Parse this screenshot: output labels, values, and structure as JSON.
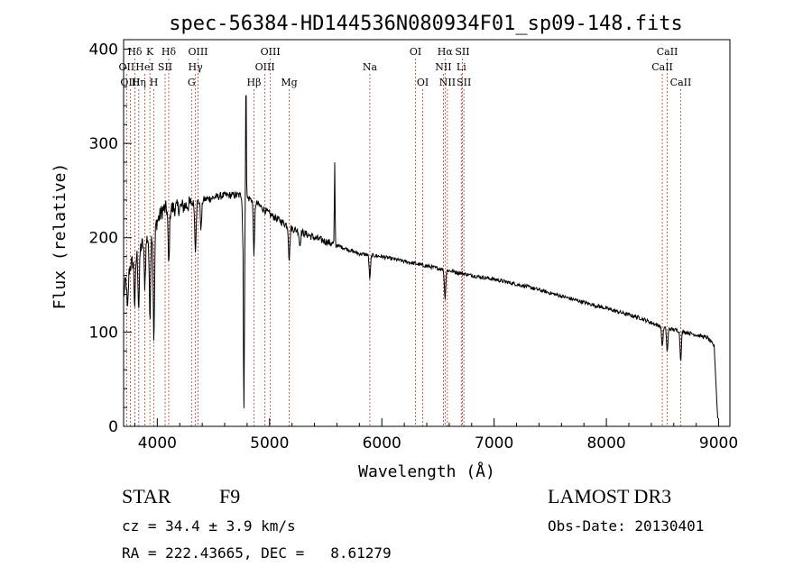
{
  "chart_data": {
    "type": "line",
    "title": "spec-56384-HD144536N080934F01_sp09-148.fits",
    "xlabel": "Wavelength (Å)",
    "ylabel": "Flux (relative)",
    "xlim": [
      3700,
      9100
    ],
    "ylim": [
      0,
      410
    ],
    "xticks": [
      4000,
      5000,
      6000,
      7000,
      8000,
      9000
    ],
    "yticks": [
      0,
      100,
      200,
      300,
      400
    ],
    "grid": false,
    "spectral_lines": [
      {
        "label": "Hδ",
        "wavelength": 3800,
        "row": 1
      },
      {
        "label": "OII",
        "wavelength": 3727,
        "row": 2
      },
      {
        "label": "OIII",
        "wavelength": 3760,
        "row": 3
      },
      {
        "label": "K",
        "wavelength": 3934,
        "row": 1
      },
      {
        "label": "HeI",
        "wavelength": 3889,
        "row": 2
      },
      {
        "label": "Hη",
        "wavelength": 3835,
        "row": 3
      },
      {
        "label": "SII",
        "wavelength": 4070,
        "row": 2
      },
      {
        "label": "H",
        "wavelength": 3970,
        "row": 3
      },
      {
        "label": "Hδ",
        "wavelength": 4102,
        "row": 1
      },
      {
        "label": "OIII",
        "wavelength": 4363,
        "row": 1
      },
      {
        "label": "Hγ",
        "wavelength": 4340,
        "row": 2
      },
      {
        "label": "G",
        "wavelength": 4305,
        "row": 3
      },
      {
        "label": "Hβ",
        "wavelength": 4861,
        "row": 3
      },
      {
        "label": "OIII",
        "wavelength": 5007,
        "row": 1
      },
      {
        "label": "OIII",
        "wavelength": 4959,
        "row": 2
      },
      {
        "label": "Mg",
        "wavelength": 5175,
        "row": 3
      },
      {
        "label": "Na",
        "wavelength": 5893,
        "row": 2
      },
      {
        "label": "OI",
        "wavelength": 6300,
        "row": 1
      },
      {
        "label": "OI",
        "wavelength": 6364,
        "row": 3
      },
      {
        "label": "Hα",
        "wavelength": 6563,
        "row": 1
      },
      {
        "label": "NII",
        "wavelength": 6548,
        "row": 2
      },
      {
        "label": "NII",
        "wavelength": 6584,
        "row": 3
      },
      {
        "label": "SII",
        "wavelength": 6717,
        "row": 1
      },
      {
        "label": "Li",
        "wavelength": 6708,
        "row": 2
      },
      {
        "label": "SII",
        "wavelength": 6731,
        "row": 3
      },
      {
        "label": "CaII",
        "wavelength": 8542,
        "row": 1
      },
      {
        "label": "CaII",
        "wavelength": 8498,
        "row": 2
      },
      {
        "label": "CaII",
        "wavelength": 8662,
        "row": 3
      }
    ],
    "continuum": [
      [
        3700,
        150
      ],
      [
        3760,
        170
      ],
      [
        3850,
        190
      ],
      [
        3950,
        205
      ],
      [
        4050,
        230
      ],
      [
        4200,
        232
      ],
      [
        4400,
        240
      ],
      [
        4600,
        245
      ],
      [
        4750,
        245
      ],
      [
        4850,
        240
      ],
      [
        5000,
        225
      ],
      [
        5200,
        210
      ],
      [
        5400,
        200
      ],
      [
        5600,
        192
      ],
      [
        5800,
        183
      ],
      [
        6000,
        180
      ],
      [
        6200,
        175
      ],
      [
        6400,
        170
      ],
      [
        6600,
        165
      ],
      [
        6800,
        160
      ],
      [
        7000,
        156
      ],
      [
        7300,
        148
      ],
      [
        7600,
        138
      ],
      [
        8000,
        125
      ],
      [
        8300,
        115
      ],
      [
        8500,
        105
      ],
      [
        8700,
        100
      ],
      [
        8900,
        94
      ],
      [
        8960,
        85
      ],
      [
        8990,
        10
      ]
    ],
    "absorption_features": [
      [
        3705,
        10
      ],
      [
        3735,
        40
      ],
      [
        3800,
        50
      ],
      [
        3835,
        60
      ],
      [
        3889,
        45
      ],
      [
        3934,
        85
      ],
      [
        3970,
        120
      ],
      [
        4102,
        60
      ],
      [
        4340,
        50
      ],
      [
        4390,
        30
      ],
      [
        4770,
        240
      ],
      [
        4861,
        55
      ],
      [
        5175,
        35
      ],
      [
        5270,
        15
      ],
      [
        5893,
        25
      ],
      [
        6563,
        30
      ],
      [
        8498,
        20
      ],
      [
        8542,
        25
      ],
      [
        8662,
        30
      ]
    ],
    "emission_features": [
      [
        4765,
        90
      ],
      [
        4790,
        140
      ],
      [
        5580,
        85
      ]
    ]
  },
  "info": {
    "object_class": "STAR",
    "subclass": "F9",
    "survey": "LAMOST DR3",
    "redshift": "cz = 34.4 ± 3.9 km/s",
    "obs_date": "Obs-Date: 20130401",
    "coords": "RA = 222.43665, DEC =   8.61279"
  }
}
